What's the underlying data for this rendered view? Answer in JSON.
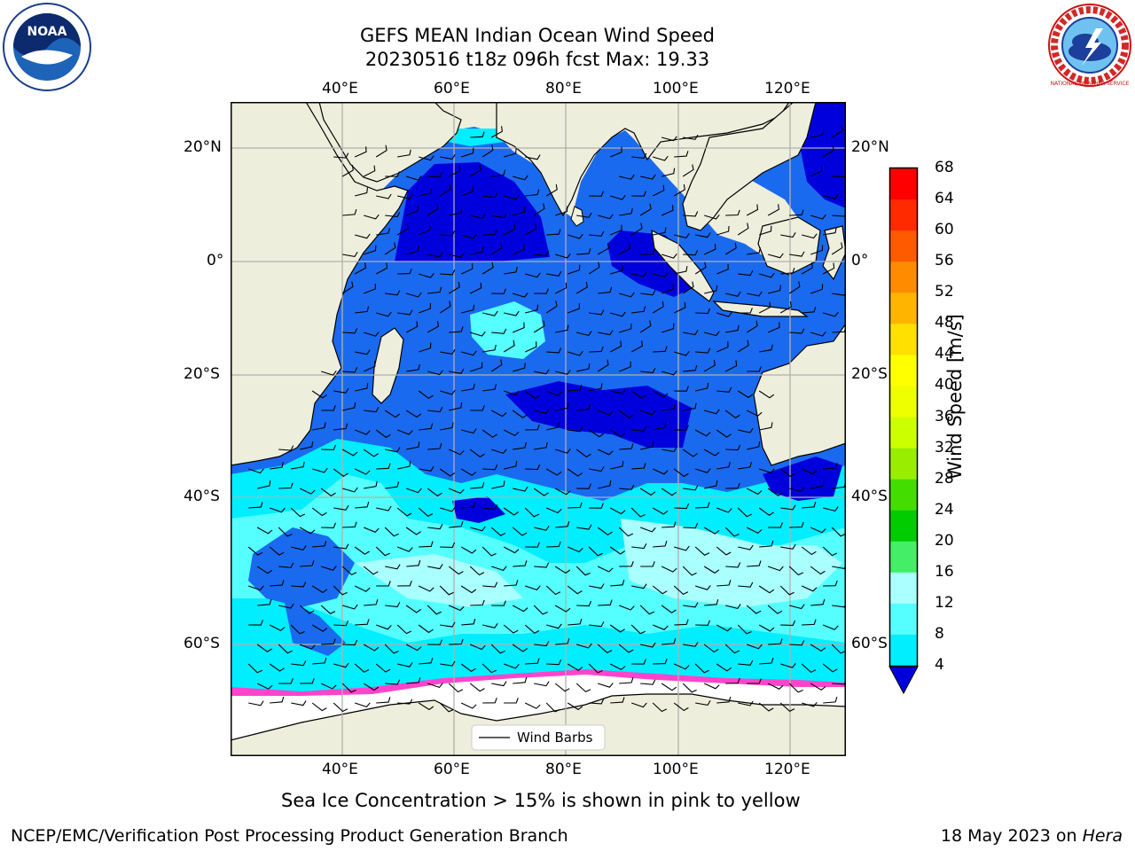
{
  "title": {
    "line1": "GEFS MEAN Indian Ocean Wind Speed",
    "line2": "20230516 t18z 096h fcst   Max: 19.33"
  },
  "logos": {
    "left": "NOAA",
    "right": "NATIONAL WEATHER SERVICE"
  },
  "map": {
    "lon_labels": [
      "40°E",
      "60°E",
      "80°E",
      "100°E",
      "120°E"
    ],
    "lat_labels": [
      "20°N",
      "0°",
      "20°S",
      "40°S",
      "60°S"
    ],
    "legend_label": "Wind Barbs",
    "colors": {
      "land": "#eeeedd",
      "ice": "#ffffff",
      "ice_edge": "#ff44cc"
    }
  },
  "colorbar": {
    "label": "Wind Speed [m/s]",
    "ticks": [
      "68",
      "64",
      "60",
      "56",
      "52",
      "48",
      "44",
      "40",
      "36",
      "32",
      "28",
      "24",
      "20",
      "16",
      "12",
      "8",
      "4"
    ],
    "colors": [
      "#ff0000",
      "#ff2a00",
      "#ff5a00",
      "#ff8c00",
      "#ffb400",
      "#ffe000",
      "#ffff00",
      "#eeff00",
      "#ccff00",
      "#99ee00",
      "#44dd00",
      "#00cc00",
      "#44ee66",
      "#aaffff",
      "#55ffff",
      "#00eeff",
      "#0077ff"
    ],
    "under_color": "#0000dd"
  },
  "caption": "Sea Ice Concentration > 15% is shown in pink to yellow",
  "footer": {
    "left": "NCEP/EMC/Verification Post Processing Product Generation Branch",
    "right_prefix": "18 May 2023 on ",
    "right_host": "Hera"
  }
}
